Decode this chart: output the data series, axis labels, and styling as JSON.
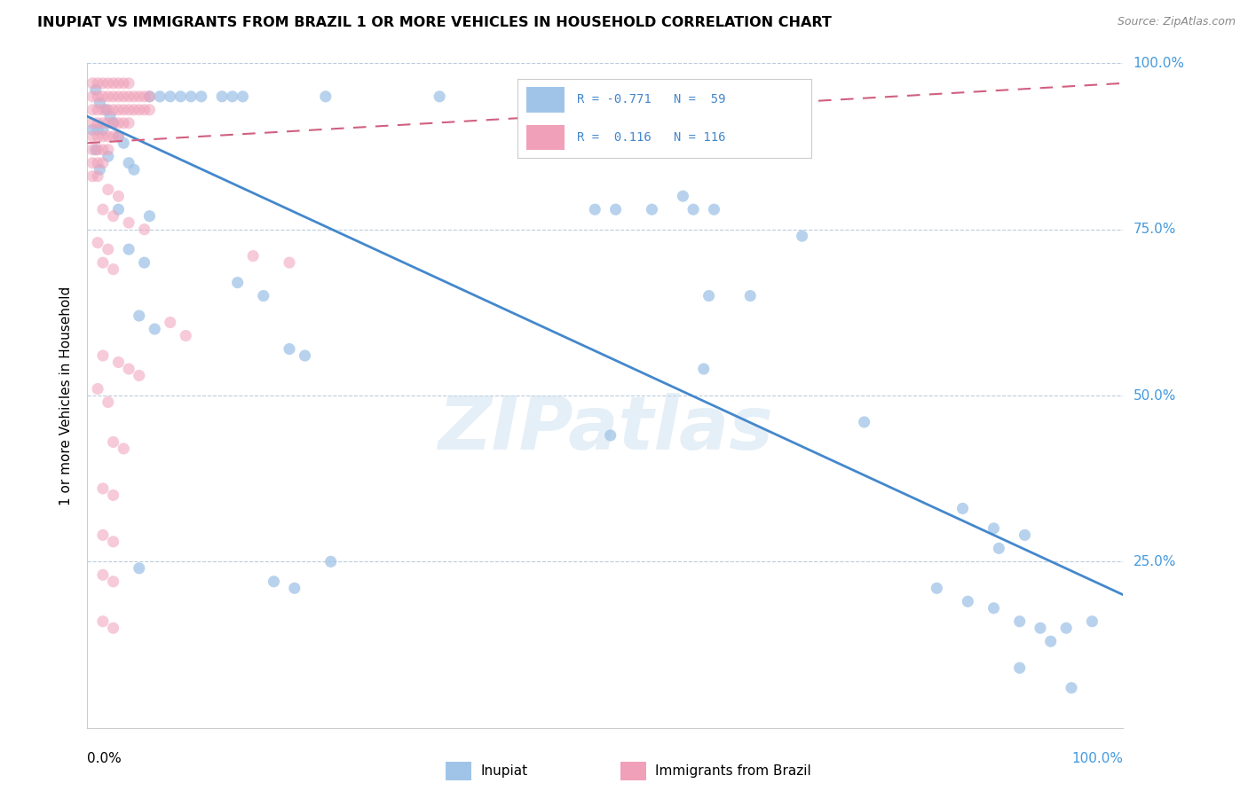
{
  "title": "INUPIAT VS IMMIGRANTS FROM BRAZIL 1 OR MORE VEHICLES IN HOUSEHOLD CORRELATION CHART",
  "source": "Source: ZipAtlas.com",
  "ylabel": "1 or more Vehicles in Household",
  "xlim": [
    0.0,
    1.0
  ],
  "ylim": [
    0.0,
    1.0
  ],
  "inupiat_color": "#a0c4e8",
  "brazil_color": "#f0a0b8",
  "inupiat_line_color": "#4488cc",
  "brazil_line_color": "#d06080",
  "watermark": "ZIPatlas",
  "inupiat_line": [
    0.0,
    0.92,
    1.0,
    0.2
  ],
  "brazil_line": [
    0.0,
    0.88,
    1.0,
    0.97
  ],
  "inupiat_points": [
    [
      0.008,
      0.96
    ],
    [
      0.012,
      0.94
    ],
    [
      0.018,
      0.93
    ],
    [
      0.022,
      0.92
    ],
    [
      0.005,
      0.9
    ],
    [
      0.01,
      0.9
    ],
    [
      0.015,
      0.9
    ],
    [
      0.025,
      0.91
    ],
    [
      0.03,
      0.89
    ],
    [
      0.035,
      0.88
    ],
    [
      0.008,
      0.87
    ],
    [
      0.02,
      0.86
    ],
    [
      0.04,
      0.85
    ],
    [
      0.012,
      0.84
    ],
    [
      0.045,
      0.84
    ],
    [
      0.06,
      0.95
    ],
    [
      0.07,
      0.95
    ],
    [
      0.08,
      0.95
    ],
    [
      0.09,
      0.95
    ],
    [
      0.1,
      0.95
    ],
    [
      0.11,
      0.95
    ],
    [
      0.13,
      0.95
    ],
    [
      0.14,
      0.95
    ],
    [
      0.15,
      0.95
    ],
    [
      0.23,
      0.95
    ],
    [
      0.34,
      0.95
    ],
    [
      0.03,
      0.78
    ],
    [
      0.06,
      0.77
    ],
    [
      0.04,
      0.72
    ],
    [
      0.055,
      0.7
    ],
    [
      0.145,
      0.67
    ],
    [
      0.17,
      0.65
    ],
    [
      0.05,
      0.62
    ],
    [
      0.065,
      0.6
    ],
    [
      0.195,
      0.57
    ],
    [
      0.21,
      0.56
    ],
    [
      0.49,
      0.78
    ],
    [
      0.51,
      0.78
    ],
    [
      0.545,
      0.78
    ],
    [
      0.575,
      0.8
    ],
    [
      0.585,
      0.78
    ],
    [
      0.605,
      0.78
    ],
    [
      0.69,
      0.74
    ],
    [
      0.6,
      0.65
    ],
    [
      0.64,
      0.65
    ],
    [
      0.595,
      0.54
    ],
    [
      0.505,
      0.44
    ],
    [
      0.75,
      0.46
    ],
    [
      0.05,
      0.24
    ],
    [
      0.18,
      0.22
    ],
    [
      0.2,
      0.21
    ],
    [
      0.235,
      0.25
    ],
    [
      0.845,
      0.33
    ],
    [
      0.875,
      0.3
    ],
    [
      0.905,
      0.29
    ],
    [
      0.88,
      0.27
    ],
    [
      0.82,
      0.21
    ],
    [
      0.85,
      0.19
    ],
    [
      0.875,
      0.18
    ],
    [
      0.9,
      0.16
    ],
    [
      0.92,
      0.15
    ],
    [
      0.945,
      0.15
    ],
    [
      0.93,
      0.13
    ],
    [
      0.97,
      0.16
    ],
    [
      0.9,
      0.09
    ],
    [
      0.95,
      0.06
    ]
  ],
  "brazil_points": [
    [
      0.005,
      0.97
    ],
    [
      0.01,
      0.97
    ],
    [
      0.015,
      0.97
    ],
    [
      0.02,
      0.97
    ],
    [
      0.025,
      0.97
    ],
    [
      0.03,
      0.97
    ],
    [
      0.035,
      0.97
    ],
    [
      0.04,
      0.97
    ],
    [
      0.005,
      0.95
    ],
    [
      0.01,
      0.95
    ],
    [
      0.015,
      0.95
    ],
    [
      0.02,
      0.95
    ],
    [
      0.025,
      0.95
    ],
    [
      0.03,
      0.95
    ],
    [
      0.035,
      0.95
    ],
    [
      0.04,
      0.95
    ],
    [
      0.045,
      0.95
    ],
    [
      0.05,
      0.95
    ],
    [
      0.055,
      0.95
    ],
    [
      0.06,
      0.95
    ],
    [
      0.005,
      0.93
    ],
    [
      0.01,
      0.93
    ],
    [
      0.015,
      0.93
    ],
    [
      0.02,
      0.93
    ],
    [
      0.025,
      0.93
    ],
    [
      0.03,
      0.93
    ],
    [
      0.035,
      0.93
    ],
    [
      0.04,
      0.93
    ],
    [
      0.045,
      0.93
    ],
    [
      0.05,
      0.93
    ],
    [
      0.055,
      0.93
    ],
    [
      0.06,
      0.93
    ],
    [
      0.005,
      0.91
    ],
    [
      0.01,
      0.91
    ],
    [
      0.015,
      0.91
    ],
    [
      0.02,
      0.91
    ],
    [
      0.025,
      0.91
    ],
    [
      0.03,
      0.91
    ],
    [
      0.035,
      0.91
    ],
    [
      0.04,
      0.91
    ],
    [
      0.005,
      0.89
    ],
    [
      0.01,
      0.89
    ],
    [
      0.015,
      0.89
    ],
    [
      0.02,
      0.89
    ],
    [
      0.025,
      0.89
    ],
    [
      0.03,
      0.89
    ],
    [
      0.005,
      0.87
    ],
    [
      0.01,
      0.87
    ],
    [
      0.015,
      0.87
    ],
    [
      0.02,
      0.87
    ],
    [
      0.005,
      0.85
    ],
    [
      0.01,
      0.85
    ],
    [
      0.015,
      0.85
    ],
    [
      0.005,
      0.83
    ],
    [
      0.01,
      0.83
    ],
    [
      0.02,
      0.81
    ],
    [
      0.03,
      0.8
    ],
    [
      0.015,
      0.78
    ],
    [
      0.025,
      0.77
    ],
    [
      0.04,
      0.76
    ],
    [
      0.055,
      0.75
    ],
    [
      0.01,
      0.73
    ],
    [
      0.02,
      0.72
    ],
    [
      0.015,
      0.7
    ],
    [
      0.025,
      0.69
    ],
    [
      0.16,
      0.71
    ],
    [
      0.195,
      0.7
    ],
    [
      0.08,
      0.61
    ],
    [
      0.095,
      0.59
    ],
    [
      0.015,
      0.56
    ],
    [
      0.03,
      0.55
    ],
    [
      0.04,
      0.54
    ],
    [
      0.05,
      0.53
    ],
    [
      0.01,
      0.51
    ],
    [
      0.02,
      0.49
    ],
    [
      0.025,
      0.43
    ],
    [
      0.035,
      0.42
    ],
    [
      0.015,
      0.36
    ],
    [
      0.025,
      0.35
    ],
    [
      0.015,
      0.29
    ],
    [
      0.025,
      0.28
    ],
    [
      0.015,
      0.23
    ],
    [
      0.025,
      0.22
    ],
    [
      0.015,
      0.16
    ],
    [
      0.025,
      0.15
    ]
  ]
}
